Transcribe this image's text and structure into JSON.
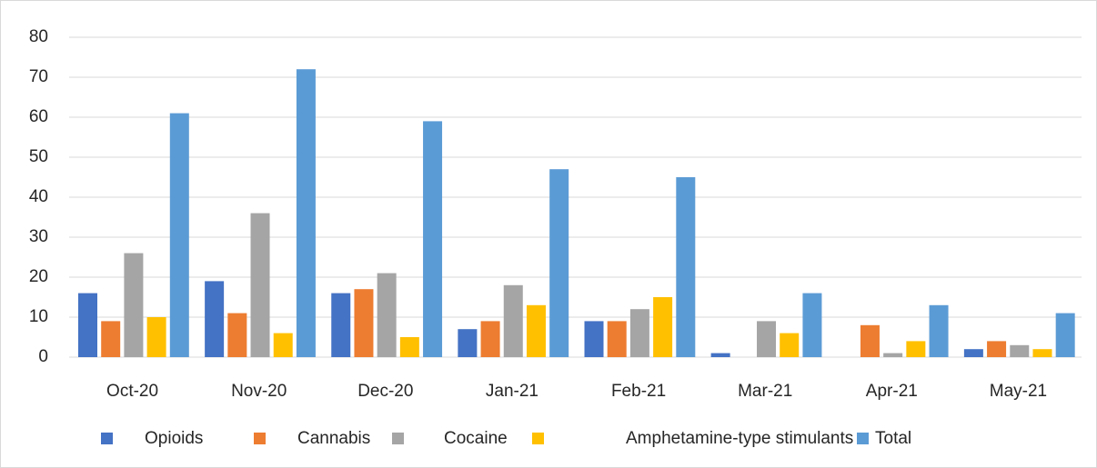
{
  "chart_data": {
    "type": "bar",
    "title": "",
    "xlabel": "",
    "ylabel": "",
    "ylim": [
      0,
      80
    ],
    "yticks": [
      0,
      10,
      20,
      30,
      40,
      50,
      60,
      70,
      80
    ],
    "grid": true,
    "legend_position": "bottom",
    "categories": [
      "Oct-20",
      "Nov-20",
      "Dec-20",
      "Jan-21",
      "Feb-21",
      "Mar-21",
      "Apr-21",
      "May-21"
    ],
    "series": [
      {
        "name": "Opioids",
        "color": "#4472c4",
        "values": [
          16,
          19,
          16,
          7,
          9,
          1,
          0,
          2
        ]
      },
      {
        "name": "Cannabis",
        "color": "#ed7d31",
        "values": [
          9,
          11,
          17,
          9,
          9,
          0,
          8,
          4
        ]
      },
      {
        "name": "Cocaine",
        "color": "#a5a5a5",
        "values": [
          26,
          36,
          21,
          18,
          12,
          9,
          1,
          3
        ]
      },
      {
        "name": "Amphetamine-type stimulants",
        "color": "#ffc000",
        "values": [
          10,
          6,
          5,
          13,
          15,
          6,
          4,
          2
        ]
      },
      {
        "name": "Total",
        "color": "#5b9bd5",
        "values": [
          61,
          72,
          59,
          47,
          45,
          16,
          13,
          11
        ]
      }
    ]
  }
}
